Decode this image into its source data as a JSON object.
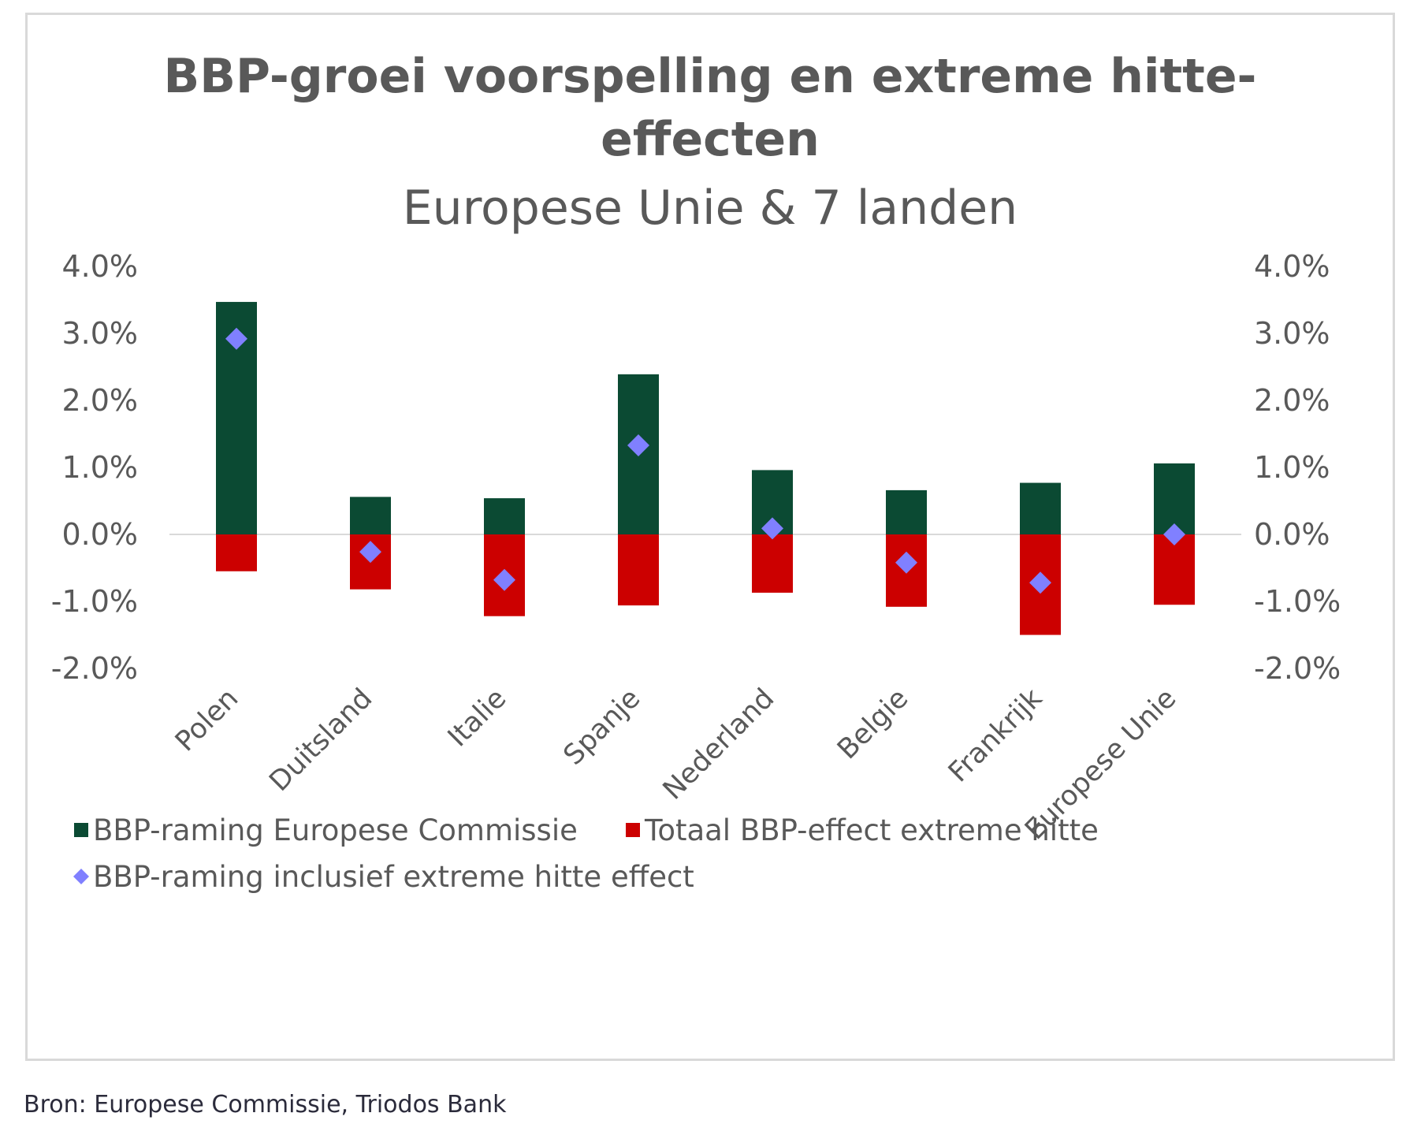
{
  "chart_data": {
    "type": "bar",
    "title": "BBP-groei voorspelling en extreme hitte-\neffecten",
    "subtitle": "Europese Unie & 7 landen",
    "categories": [
      "Polen",
      "Duitsland",
      "Italie",
      "Spanje",
      "Nederland",
      "Belgie",
      "Frankrijk",
      "Europese Unie"
    ],
    "series": [
      {
        "name": "BBP-raming Europese Commissie",
        "kind": "bar",
        "color": "#0b4a33",
        "values": [
          3.47,
          0.56,
          0.54,
          2.39,
          0.96,
          0.66,
          0.77,
          1.06
        ]
      },
      {
        "name": "Totaal BBP-effect extreme hitte",
        "kind": "bar",
        "color": "#cc0000",
        "values": [
          -0.55,
          -0.82,
          -1.22,
          -1.06,
          -0.87,
          -1.08,
          -1.5,
          -1.05
        ]
      },
      {
        "name": "BBP-raming inclusief extreme hitte effect",
        "kind": "marker",
        "marker": "diamond",
        "color": "#8080ff",
        "values": [
          2.92,
          -0.26,
          -0.68,
          1.33,
          0.09,
          -0.42,
          -0.72,
          0.0
        ]
      }
    ],
    "ylim": [
      -2.0,
      4.0
    ],
    "yticks": [
      "4.0%",
      "3.0%",
      "2.0%",
      "1.0%",
      "0.0%",
      "-1.0%",
      "-2.0%"
    ],
    "y2ticks": [
      "4.0%",
      "3.0%",
      "2.0%",
      "1.0%",
      "0.0%",
      "-1.0%",
      "-2.0%"
    ],
    "grid": false,
    "legend_position": "bottom"
  },
  "source": "Bron: Europese Commissie, Triodos Bank"
}
